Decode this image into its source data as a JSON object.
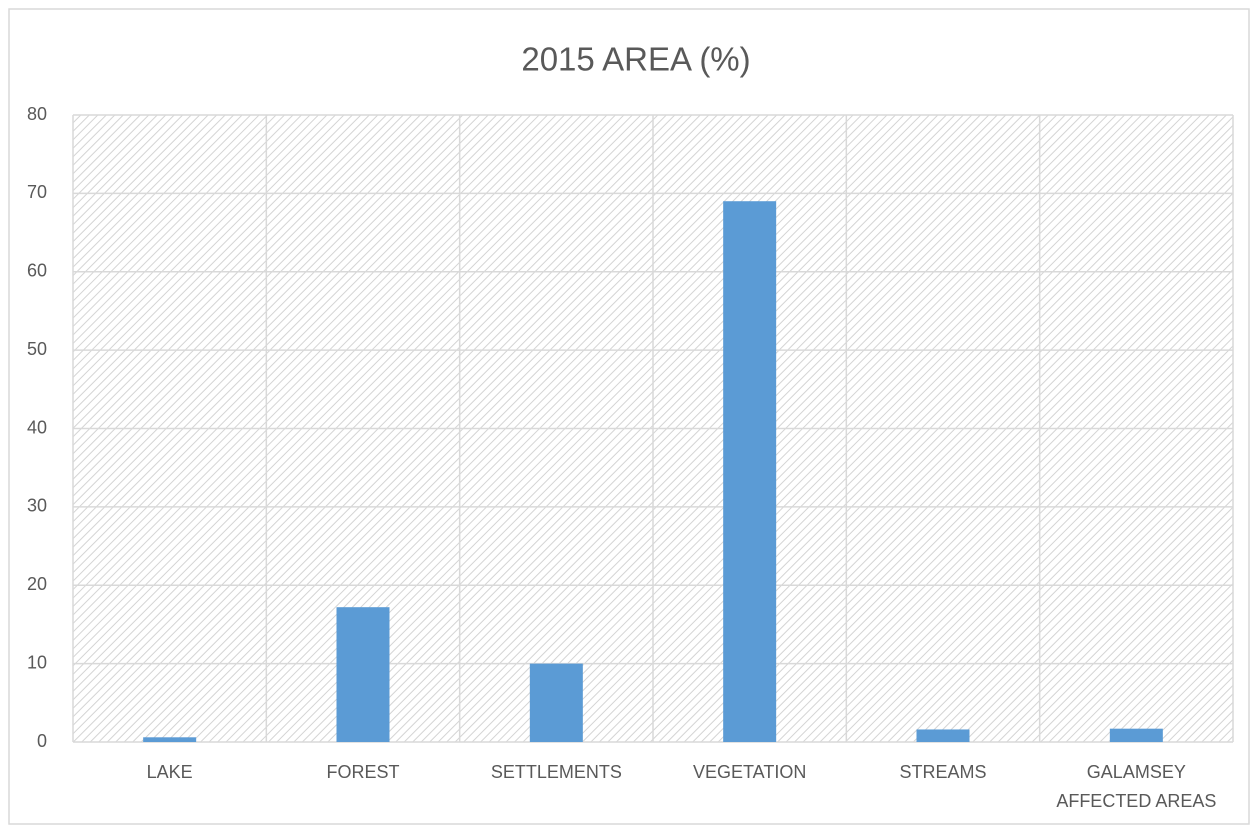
{
  "chart_data": {
    "type": "bar",
    "title": "2015 AREA (%)",
    "categories": [
      "LAKE",
      "FOREST",
      "SETTLEMENTS",
      "VEGETATION",
      "STREAMS",
      "GALAMSEY AFFECTED AREAS"
    ],
    "values": [
      0.6,
      17.2,
      10,
      69,
      1.6,
      1.7
    ],
    "color": "#5b9bd5",
    "ylim": [
      0,
      80
    ],
    "yticks": [
      0,
      10,
      20,
      30,
      40,
      50,
      60,
      70,
      80
    ],
    "grid": true
  }
}
